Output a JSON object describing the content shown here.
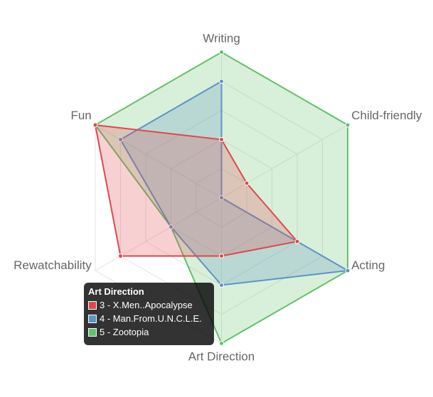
{
  "chart_data": {
    "type": "radar",
    "axes": [
      "Writing",
      "Child-friendly",
      "Acting",
      "Art Direction",
      "Rewatchability",
      "Fun"
    ],
    "rmax": 5,
    "grid": true,
    "series": [
      {
        "name": "3 - X.Men..Apocalypse",
        "color": "#e0474c",
        "values": [
          2,
          1,
          3,
          2,
          4,
          5
        ]
      },
      {
        "name": "4 - Man.From.U.N.C.L.E.",
        "color": "#5b94c5",
        "values": [
          4,
          0,
          5,
          3,
          2,
          4
        ]
      },
      {
        "name": "5 - Zootopia",
        "color": "#64c06a",
        "values": [
          5,
          5,
          5,
          5,
          2,
          5
        ]
      }
    ]
  },
  "tooltip": {
    "title": "Art Direction",
    "items": [
      {
        "label": "3 - X.Men..Apocalypse",
        "color": "#e0474c"
      },
      {
        "label": "4 - Man.From.U.N.C.L.E.",
        "color": "#5b94c5"
      },
      {
        "label": "5 - Zootopia",
        "color": "#64c06a"
      }
    ]
  }
}
